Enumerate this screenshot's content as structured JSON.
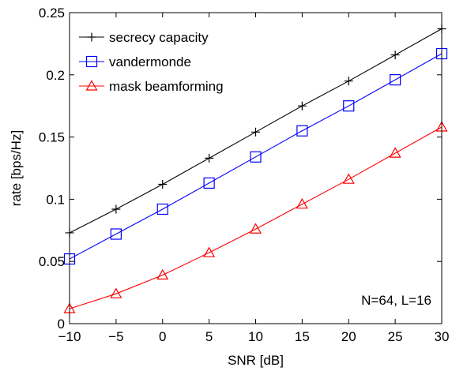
{
  "chart_data": {
    "type": "line",
    "xlabel": "SNR [dB]",
    "ylabel": "rate [bps/Hz]",
    "xlim": [
      -10,
      30
    ],
    "ylim": [
      0,
      0.25
    ],
    "x": [
      -10,
      -5,
      0,
      5,
      10,
      15,
      20,
      25,
      30
    ],
    "xticks": [
      -10,
      -5,
      0,
      5,
      10,
      15,
      20,
      25,
      30
    ],
    "xtick_labels": [
      "−10",
      "−5",
      "0",
      "5",
      "10",
      "15",
      "20",
      "25",
      "30"
    ],
    "yticks": [
      0,
      0.05,
      0.1,
      0.15,
      0.2,
      0.25
    ],
    "ytick_labels": [
      "0",
      "0.05",
      "0.1",
      "0.15",
      "0.2",
      "0.25"
    ],
    "grid": false,
    "legend_position": "top-left",
    "series": [
      {
        "name": "secrecy capacity",
        "color": "#000000",
        "marker": "plus",
        "values": [
          0.073,
          0.092,
          0.112,
          0.133,
          0.154,
          0.175,
          0.195,
          0.216,
          0.237
        ]
      },
      {
        "name": "vandermonde",
        "color": "#0000ff",
        "marker": "square",
        "values": [
          0.052,
          0.072,
          0.092,
          0.113,
          0.134,
          0.155,
          0.175,
          0.196,
          0.217
        ]
      },
      {
        "name": "mask beamforming",
        "color": "#ff0000",
        "marker": "triangle",
        "values": [
          0.012,
          0.024,
          0.039,
          0.057,
          0.076,
          0.096,
          0.116,
          0.137,
          0.158
        ]
      }
    ],
    "annotation": "N=64, L=16"
  }
}
